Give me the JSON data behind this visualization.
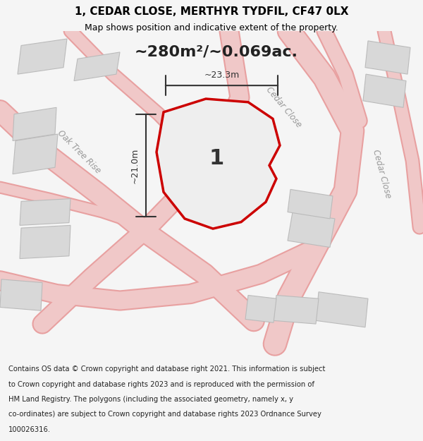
{
  "title_line1": "1, CEDAR CLOSE, MERTHYR TYDFIL, CF47 0LX",
  "title_line2": "Map shows position and indicative extent of the property.",
  "area_text": "~280m²/~0.069ac.",
  "dim_width": "~23.3m",
  "dim_height": "~21.0m",
  "label_property": "1",
  "label_oak_tree": "Oak Tree Rise",
  "label_cedar_close_diag": "Cedar Close",
  "label_cedar_close_right": "Cedar Close",
  "footer_lines": [
    "Contains OS data © Crown copyright and database right 2021. This information is subject",
    "to Crown copyright and database rights 2023 and is reproduced with the permission of",
    "HM Land Registry. The polygons (including the associated geometry, namely x, y",
    "co-ordinates) are subject to Crown copyright and database rights 2023 Ordnance Survey",
    "100026316."
  ],
  "bg_color": "#f5f5f5",
  "map_bg": "#ffffff",
  "road_color": "#f0c8c8",
  "road_edge_color": "#e8a0a0",
  "building_color": "#d8d8d8",
  "building_edge": "#bbbbbb",
  "property_fill": "#eeeeee",
  "property_edge": "#cc0000",
  "dim_line_color": "#333333",
  "text_color": "#333333",
  "title_color": "#000000",
  "road_label_color": "#999999"
}
